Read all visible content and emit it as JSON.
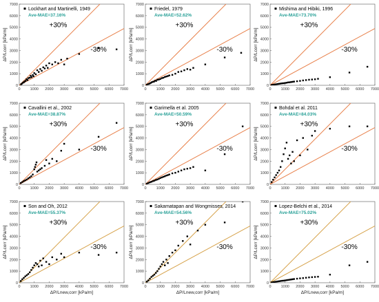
{
  "colors": {
    "band_line": "#e8804a",
    "band_line_alt": "#d6a24a",
    "mae_text": "#2aa198",
    "marker": "#000000",
    "axis": "#555555"
  },
  "chart_data": [
    {
      "type": "scatter",
      "legend": "Lockhart and Martinelli, 1949",
      "mae": "Ave-MAE=37.16%",
      "upper_label": "+30%",
      "lower_label": "-30%",
      "xlabel": "",
      "ylabel": "ΔP/Lcorr [kPa/m]",
      "xlim": [
        0,
        7000
      ],
      "ylim": [
        0,
        7000
      ],
      "xticks": [
        "0",
        "1000",
        "2000",
        "3000",
        "4000",
        "5000",
        "6000",
        "7000"
      ],
      "yticks": [
        "0",
        "1000",
        "2000",
        "3000",
        "4000",
        "5000",
        "6000",
        "7000"
      ],
      "points": [
        [
          120,
          90
        ],
        [
          180,
          150
        ],
        [
          250,
          230
        ],
        [
          300,
          260
        ],
        [
          350,
          330
        ],
        [
          420,
          380
        ],
        [
          480,
          520
        ],
        [
          550,
          450
        ],
        [
          600,
          620
        ],
        [
          700,
          650
        ],
        [
          760,
          820
        ],
        [
          820,
          700
        ],
        [
          900,
          880
        ],
        [
          950,
          780
        ],
        [
          1000,
          1050
        ],
        [
          1100,
          950
        ],
        [
          1200,
          1300
        ],
        [
          1300,
          1150
        ],
        [
          1400,
          1400
        ],
        [
          1500,
          1250
        ],
        [
          1600,
          1550
        ],
        [
          1700,
          1450
        ],
        [
          1800,
          1700
        ],
        [
          1900,
          1500
        ],
        [
          2000,
          1900
        ],
        [
          2200,
          1800
        ],
        [
          2400,
          2000
        ],
        [
          2600,
          1900
        ],
        [
          2800,
          2200
        ],
        [
          3000,
          1800
        ],
        [
          3200,
          2300
        ],
        [
          4000,
          2700
        ],
        [
          5300,
          3200
        ],
        [
          6500,
          3100
        ]
      ]
    },
    {
      "type": "scatter",
      "legend": "Friedel, 1979",
      "mae": "Ave-MAE=52.62%",
      "upper_label": "+30%",
      "lower_label": "-30%",
      "xlabel": "",
      "ylabel": "ΔP/Lcorr [kPa/m]",
      "xlim": [
        0,
        7000
      ],
      "ylim": [
        0,
        7000
      ],
      "xticks": [
        "0",
        "1000",
        "2000",
        "3000",
        "4000",
        "5000",
        "6000",
        "7000"
      ],
      "yticks": [
        "0",
        "1000",
        "2000",
        "3000",
        "4000",
        "5000",
        "6000",
        "7000"
      ],
      "points": [
        [
          100,
          60
        ],
        [
          200,
          110
        ],
        [
          280,
          150
        ],
        [
          350,
          200
        ],
        [
          420,
          260
        ],
        [
          500,
          300
        ],
        [
          580,
          320
        ],
        [
          650,
          400
        ],
        [
          720,
          380
        ],
        [
          800,
          480
        ],
        [
          900,
          500
        ],
        [
          1000,
          550
        ],
        [
          1100,
          620
        ],
        [
          1200,
          650
        ],
        [
          1300,
          720
        ],
        [
          1400,
          760
        ],
        [
          1500,
          800
        ],
        [
          1600,
          850
        ],
        [
          1800,
          900
        ],
        [
          2000,
          1000
        ],
        [
          2200,
          1150
        ],
        [
          2400,
          1200
        ],
        [
          2600,
          1300
        ],
        [
          2800,
          1400
        ],
        [
          3000,
          1350
        ],
        [
          3200,
          1500
        ],
        [
          4000,
          1800
        ],
        [
          5300,
          2400
        ],
        [
          6400,
          2800
        ]
      ]
    },
    {
      "type": "scatter",
      "legend": "Mishima and Hibiki, 1996",
      "mae": "Ave-MAE=73.70%",
      "upper_label": "+30%",
      "lower_label": "-30%",
      "xlabel": "",
      "ylabel": "ΔP/Lcorr [kPa/m]",
      "xlim": [
        0,
        7000
      ],
      "ylim": [
        0,
        7000
      ],
      "xticks": [
        "0",
        "1000",
        "2000",
        "3000",
        "4000",
        "5000",
        "6000",
        "7000"
      ],
      "yticks": [
        "0",
        "1000",
        "2000",
        "3000",
        "4000",
        "5000",
        "6000",
        "7000"
      ],
      "points": [
        [
          100,
          30
        ],
        [
          200,
          50
        ],
        [
          300,
          70
        ],
        [
          400,
          90
        ],
        [
          500,
          110
        ],
        [
          600,
          130
        ],
        [
          700,
          150
        ],
        [
          800,
          170
        ],
        [
          900,
          180
        ],
        [
          1000,
          200
        ],
        [
          1100,
          220
        ],
        [
          1200,
          250
        ],
        [
          1300,
          260
        ],
        [
          1400,
          280
        ],
        [
          1500,
          300
        ],
        [
          1600,
          320
        ],
        [
          1800,
          350
        ],
        [
          2000,
          380
        ],
        [
          2200,
          420
        ],
        [
          2400,
          450
        ],
        [
          2600,
          480
        ],
        [
          2800,
          500
        ],
        [
          3000,
          520
        ],
        [
          3200,
          560
        ],
        [
          4000,
          700
        ],
        [
          5300,
          1100
        ],
        [
          6500,
          1600
        ]
      ]
    },
    {
      "type": "scatter",
      "legend": "Cavallini et al., 2002",
      "mae": "Ave-MAE=38.87%",
      "upper_label": "+30%",
      "lower_label": "-30%",
      "xlabel": "",
      "ylabel": "ΔP/Lcorr [kPa/m]",
      "xlim": [
        0,
        7000
      ],
      "ylim": [
        0,
        7000
      ],
      "xticks": [
        "0",
        "1000",
        "2000",
        "3000",
        "4000",
        "5000",
        "6000",
        "7000"
      ],
      "yticks": [
        "0",
        "1000",
        "2000",
        "3000",
        "4000",
        "5000",
        "6000",
        "7000"
      ],
      "points": [
        [
          100,
          120
        ],
        [
          200,
          200
        ],
        [
          300,
          280
        ],
        [
          400,
          350
        ],
        [
          500,
          420
        ],
        [
          600,
          520
        ],
        [
          700,
          600
        ],
        [
          800,
          700
        ],
        [
          900,
          850
        ],
        [
          1000,
          1300
        ],
        [
          1050,
          1500
        ],
        [
          1100,
          1700
        ],
        [
          1150,
          1900
        ],
        [
          1200,
          1100
        ],
        [
          1300,
          1200
        ],
        [
          1400,
          1300
        ],
        [
          1500,
          1400
        ],
        [
          1700,
          1600
        ],
        [
          1800,
          2100
        ],
        [
          2000,
          1800
        ],
        [
          2200,
          2200
        ],
        [
          2500,
          2000
        ],
        [
          2800,
          2900
        ],
        [
          3000,
          3500
        ],
        [
          4000,
          3000
        ],
        [
          5300,
          4100
        ],
        [
          6500,
          5300
        ]
      ]
    },
    {
      "type": "scatter",
      "legend": "Garimella et al. 2005",
      "mae": "Ave-MAE=50.59%",
      "upper_label": "+30%",
      "lower_label": "-30%",
      "xlabel": "",
      "ylabel": "ΔP/Lcorr [kPa/m]",
      "xlim": [
        0,
        7000
      ],
      "ylim": [
        0,
        7000
      ],
      "xticks": [
        "0",
        "1000",
        "2000",
        "3000",
        "4000",
        "5000",
        "6000",
        "7000"
      ],
      "yticks": [
        "0",
        "1000",
        "2000",
        "3000",
        "4000",
        "5000",
        "6000",
        "7000"
      ],
      "points": [
        [
          100,
          60
        ],
        [
          200,
          120
        ],
        [
          300,
          180
        ],
        [
          400,
          220
        ],
        [
          500,
          280
        ],
        [
          600,
          320
        ],
        [
          700,
          380
        ],
        [
          800,
          420
        ],
        [
          900,
          480
        ],
        [
          1000,
          550
        ],
        [
          1100,
          600
        ],
        [
          1200,
          650
        ],
        [
          1300,
          700
        ],
        [
          1400,
          760
        ],
        [
          1500,
          800
        ],
        [
          1600,
          850
        ],
        [
          1800,
          950
        ],
        [
          2000,
          1000
        ],
        [
          2200,
          1100
        ],
        [
          2400,
          1200
        ],
        [
          2600,
          1300
        ],
        [
          2800,
          1350
        ],
        [
          3000,
          1400
        ],
        [
          3200,
          1500
        ],
        [
          4000,
          1200
        ],
        [
          5300,
          2600
        ],
        [
          6500,
          5000
        ]
      ]
    },
    {
      "type": "scatter",
      "legend": "Bohdal et al. 2011",
      "mae": "Ave-MAE=84.03%",
      "upper_label": "+30%",
      "lower_label": "-30%",
      "xlabel": "",
      "ylabel": "ΔP/Lcorr [kPa/m]",
      "xlim": [
        0,
        7000
      ],
      "ylim": [
        0,
        7000
      ],
      "xticks": [
        "0",
        "1000",
        "2000",
        "3000",
        "4000",
        "5000",
        "6000",
        "7000"
      ],
      "yticks": [
        "0",
        "1000",
        "2000",
        "3000",
        "4000",
        "5000",
        "6000",
        "7000"
      ],
      "points": [
        [
          100,
          200
        ],
        [
          200,
          400
        ],
        [
          300,
          600
        ],
        [
          400,
          800
        ],
        [
          500,
          1000
        ],
        [
          600,
          1200
        ],
        [
          700,
          1500
        ],
        [
          800,
          2000
        ],
        [
          900,
          2600
        ],
        [
          1000,
          3100
        ],
        [
          1100,
          3600
        ],
        [
          1200,
          2200
        ],
        [
          1300,
          2500
        ],
        [
          1400,
          1800
        ],
        [
          1500,
          2800
        ],
        [
          1600,
          2000
        ],
        [
          1800,
          3800
        ],
        [
          2000,
          2500
        ],
        [
          2200,
          4000
        ],
        [
          2500,
          3000
        ],
        [
          2800,
          4200
        ],
        [
          3000,
          4600
        ],
        [
          4000,
          4800
        ],
        [
          5300,
          5000
        ],
        [
          6500,
          5000
        ]
      ]
    },
    {
      "type": "scatter",
      "legend": "Son and Oh, 2012",
      "mae": "Ave-MAE=55.37%",
      "upper_label": "+30%",
      "lower_label": "-30%",
      "xlabel": "ΔP/Lnew,corr [kPa/m]",
      "ylabel": "ΔP/Lcorr [kPa/m]",
      "xlim": [
        0,
        7000
      ],
      "ylim": [
        0,
        7000
      ],
      "xticks": [
        "0",
        "1000",
        "2000",
        "3000",
        "4000",
        "5000",
        "6000",
        "7000"
      ],
      "yticks": [
        "0",
        "1000",
        "2000",
        "3000",
        "4000",
        "5000",
        "6000",
        "7000"
      ],
      "points": [
        [
          100,
          150
        ],
        [
          200,
          300
        ],
        [
          300,
          420
        ],
        [
          400,
          550
        ],
        [
          500,
          650
        ],
        [
          600,
          750
        ],
        [
          700,
          900
        ],
        [
          800,
          1100
        ],
        [
          900,
          1300
        ],
        [
          1000,
          1500
        ],
        [
          1100,
          1700
        ],
        [
          1200,
          1600
        ],
        [
          1300,
          1400
        ],
        [
          1400,
          1900
        ],
        [
          1500,
          1500
        ],
        [
          1600,
          2100
        ],
        [
          1800,
          1800
        ],
        [
          2000,
          1600
        ],
        [
          2200,
          2200
        ],
        [
          2500,
          2000
        ],
        [
          2800,
          2500
        ],
        [
          3000,
          2200
        ],
        [
          4000,
          2600
        ],
        [
          5300,
          2400
        ],
        [
          6500,
          2600
        ]
      ]
    },
    {
      "type": "scatter",
      "legend": "Sakamatapan and Wongmisses, 2014",
      "mae": "Ave-MAE=54.56%",
      "upper_label": "+30%",
      "lower_label": "-30%",
      "xlabel": "ΔP/Lnew,corr [kPa/m]",
      "ylabel": "ΔP/Lcorr [kPa/m]",
      "xlim": [
        0,
        7000
      ],
      "ylim": [
        0,
        7000
      ],
      "xticks": [
        "0",
        "1000",
        "2000",
        "3000",
        "4000",
        "5000",
        "6000",
        "7000"
      ],
      "yticks": [
        "0",
        "1000",
        "2000",
        "3000",
        "4000",
        "5000",
        "6000",
        "7000"
      ],
      "points": [
        [
          100,
          100
        ],
        [
          200,
          200
        ],
        [
          300,
          350
        ],
        [
          400,
          500
        ],
        [
          500,
          600
        ],
        [
          600,
          700
        ],
        [
          700,
          850
        ],
        [
          800,
          1000
        ],
        [
          900,
          1200
        ],
        [
          1000,
          1400
        ],
        [
          1100,
          1600
        ],
        [
          1200,
          1800
        ],
        [
          1300,
          1500
        ],
        [
          1400,
          2000
        ],
        [
          1500,
          1700
        ],
        [
          1600,
          2300
        ],
        [
          1800,
          2600
        ],
        [
          2000,
          2800
        ],
        [
          2200,
          3200
        ],
        [
          2500,
          3600
        ],
        [
          2800,
          4000
        ],
        [
          3000,
          3300
        ],
        [
          3500,
          4500
        ],
        [
          4000,
          5000
        ],
        [
          5300,
          5200
        ],
        [
          6500,
          7000
        ]
      ]
    },
    {
      "type": "scatter",
      "legend": "Lopez-Belchi et al., 2014",
      "mae": "Ave-MAE=75.02%",
      "upper_label": "+30%",
      "lower_label": "-30%",
      "xlabel": "ΔP/Lnew,corr [kPa/m]",
      "ylabel": "ΔP/Lcorr [kPa/m]",
      "xlim": [
        0,
        7000
      ],
      "ylim": [
        0,
        7000
      ],
      "xticks": [
        "0",
        "1000",
        "2000",
        "3000",
        "4000",
        "5000",
        "6000",
        "7000"
      ],
      "yticks": [
        "0",
        "1000",
        "2000",
        "3000",
        "4000",
        "5000",
        "6000",
        "7000"
      ],
      "points": [
        [
          100,
          30
        ],
        [
          200,
          50
        ],
        [
          300,
          70
        ],
        [
          400,
          90
        ],
        [
          500,
          110
        ],
        [
          600,
          130
        ],
        [
          700,
          150
        ],
        [
          800,
          170
        ],
        [
          900,
          180
        ],
        [
          1000,
          200
        ],
        [
          1100,
          220
        ],
        [
          1200,
          240
        ],
        [
          1300,
          260
        ],
        [
          1400,
          280
        ],
        [
          1500,
          300
        ],
        [
          1600,
          320
        ],
        [
          1800,
          350
        ],
        [
          2000,
          380
        ],
        [
          2200,
          400
        ],
        [
          2400,
          430
        ],
        [
          2600,
          460
        ],
        [
          2800,
          480
        ],
        [
          3000,
          500
        ],
        [
          3200,
          520
        ],
        [
          4000,
          700
        ],
        [
          5300,
          1500
        ],
        [
          6500,
          1800
        ]
      ]
    }
  ]
}
